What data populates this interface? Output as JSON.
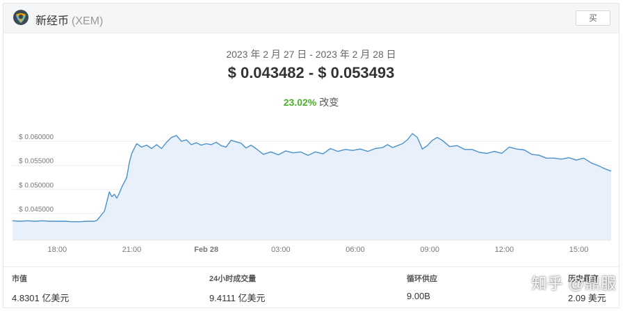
{
  "header": {
    "coin_name": "新经币",
    "coin_symbol": "(XEM)",
    "buy_label": "买"
  },
  "summary": {
    "date_range": "2023 年 2 月 27 日 - 2023 年 2 月 28 日",
    "price_range": "$ 0.043482 - $ 0.053493",
    "change_pct": "23.02%",
    "change_label": "改变"
  },
  "chart_data": {
    "type": "area",
    "title": "",
    "xlabel": "",
    "ylabel": "",
    "ylim": [
      0.0395,
      0.0655
    ],
    "xlim": [
      16.2,
      40.3
    ],
    "y_ticks": [
      {
        "value": 0.045,
        "label": "$ 0.045000"
      },
      {
        "value": 0.05,
        "label": "$ 0.050000"
      },
      {
        "value": 0.055,
        "label": "$ 0.055000"
      },
      {
        "value": 0.06,
        "label": "$ 0.060000"
      }
    ],
    "x_ticks": [
      {
        "value": 18,
        "label": "18:00",
        "bold": false
      },
      {
        "value": 21,
        "label": "21:00",
        "bold": false
      },
      {
        "value": 24,
        "label": "Feb 28",
        "bold": true
      },
      {
        "value": 27,
        "label": "03:00",
        "bold": false
      },
      {
        "value": 30,
        "label": "06:00",
        "bold": false
      },
      {
        "value": 33,
        "label": "09:00",
        "bold": false
      },
      {
        "value": 36,
        "label": "12:00",
        "bold": false
      },
      {
        "value": 39,
        "label": "15:00",
        "bold": false
      }
    ],
    "grid": true,
    "line_color": "#4a90c8",
    "fill_color": "#e8f1fb",
    "series": [
      {
        "x": [
          16.2,
          16.5,
          16.8,
          17.1,
          17.4,
          17.7,
          18.0,
          18.3,
          18.6,
          18.9,
          19.2,
          19.5,
          19.6,
          19.7,
          19.9,
          20.0,
          20.1,
          20.2,
          20.3,
          20.4,
          20.5,
          20.6,
          20.8,
          20.9,
          21.0,
          21.2,
          21.4,
          21.6,
          21.8,
          22.0,
          22.2,
          22.4,
          22.6,
          22.8,
          23.0,
          23.2,
          23.4,
          23.6,
          23.8,
          24.0,
          24.2,
          24.4,
          24.6,
          24.8,
          25.0,
          25.2,
          25.4,
          25.6,
          25.8,
          26.0,
          26.3,
          26.6,
          26.9,
          27.2,
          27.5,
          27.8,
          28.1,
          28.4,
          28.7,
          29.0,
          29.3,
          29.6,
          29.9,
          30.2,
          30.5,
          30.8,
          31.1,
          31.3,
          31.5,
          31.7,
          31.9,
          32.1,
          32.3,
          32.5,
          32.7,
          32.9,
          33.1,
          33.3,
          33.5,
          33.8,
          34.1,
          34.4,
          34.7,
          35.0,
          35.3,
          35.6,
          35.9,
          36.2,
          36.5,
          36.8,
          37.1,
          37.4,
          37.7,
          38.0,
          38.3,
          38.6,
          38.9,
          39.2,
          39.5,
          39.8,
          40.0,
          40.3
        ],
        "y": [
          0.0435,
          0.0434,
          0.0435,
          0.0434,
          0.0435,
          0.0434,
          0.0434,
          0.0434,
          0.0433,
          0.0433,
          0.0434,
          0.0434,
          0.0436,
          0.0442,
          0.0455,
          0.0475,
          0.0495,
          0.0485,
          0.049,
          0.0482,
          0.0492,
          0.0505,
          0.0525,
          0.0555,
          0.0575,
          0.0595,
          0.0588,
          0.0592,
          0.0585,
          0.0593,
          0.0585,
          0.0598,
          0.0608,
          0.0612,
          0.06,
          0.0603,
          0.0593,
          0.0597,
          0.0592,
          0.0595,
          0.0593,
          0.0598,
          0.0591,
          0.0588,
          0.0602,
          0.0599,
          0.0596,
          0.0586,
          0.0592,
          0.0585,
          0.0573,
          0.0578,
          0.0572,
          0.058,
          0.0576,
          0.0578,
          0.0571,
          0.0578,
          0.0574,
          0.0585,
          0.0579,
          0.0583,
          0.0581,
          0.0584,
          0.0579,
          0.0585,
          0.0587,
          0.0593,
          0.0587,
          0.0591,
          0.0595,
          0.0603,
          0.0616,
          0.0608,
          0.0584,
          0.0591,
          0.0602,
          0.0608,
          0.0602,
          0.0589,
          0.0591,
          0.0583,
          0.0583,
          0.0577,
          0.0575,
          0.0579,
          0.0575,
          0.0588,
          0.0584,
          0.0582,
          0.0573,
          0.0571,
          0.0565,
          0.0565,
          0.0563,
          0.0566,
          0.0561,
          0.0565,
          0.0555,
          0.0549,
          0.0544,
          0.0538
        ]
      }
    ]
  },
  "stats": [
    {
      "label": "市值",
      "value": "4.8301 亿美元"
    },
    {
      "label": "24小时成交量",
      "value": "9.4111 亿美元"
    },
    {
      "label": "循环供应",
      "value": "9.00B"
    },
    {
      "label": "历史最高",
      "value": "2.09 美元"
    }
  ],
  "watermark": "知乎 @鼎服"
}
